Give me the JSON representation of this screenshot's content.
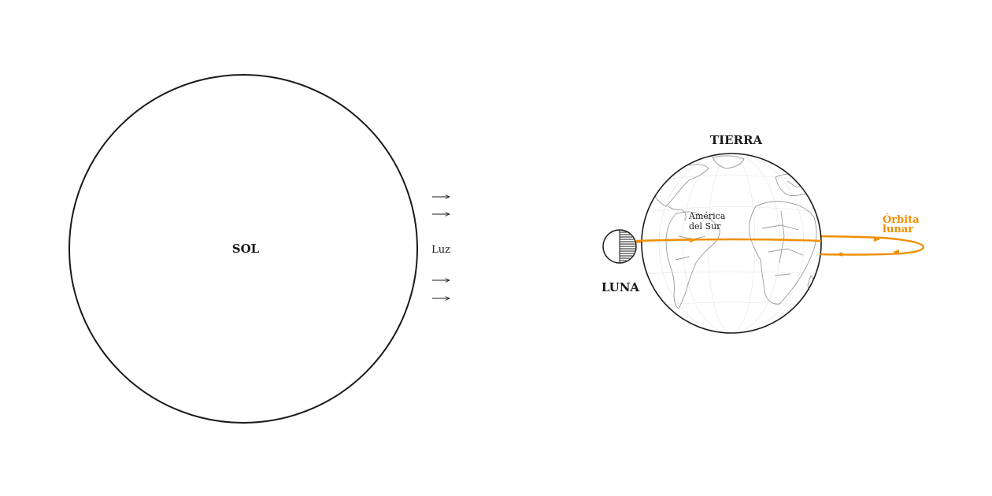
{
  "sun": {
    "label": "SOL"
  },
  "light": {
    "label": "Luz",
    "arrow_count": 4
  },
  "earth": {
    "label": "TIERRA",
    "region_label_line1": "América",
    "region_label_line2": "del Sur"
  },
  "moon": {
    "label": "LUNA"
  },
  "orbit": {
    "label_line1": "Órbita",
    "label_line2": "lunar"
  },
  "colors": {
    "orbit": "#ef8f00",
    "ink": "#1a1a1a",
    "land": "#9a9a9a"
  }
}
